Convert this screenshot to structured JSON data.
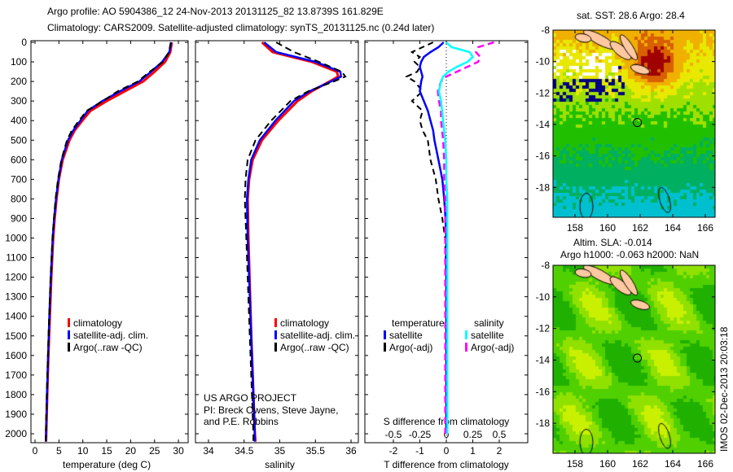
{
  "title": {
    "line1": "Argo profile: AO 5904386_12 24-Nov-2013 20131125_82 13.8739S 161.829E",
    "line2": "Climatology: CARS2009. Satellite-adjusted climatology: synTS_20131125.nc (0.24d later)"
  },
  "credits": {
    "line1": "US ARGO PROJECT",
    "line2": "PI: Breck Owens, Steve Jayne, and P.E. Robbins"
  },
  "timestamp": "IMOS 02-Dec-2013 20:03:18",
  "colors": {
    "climatology": "#ff0000",
    "satellite": "#0000ff",
    "argo": "#000000",
    "sal_satellite": "#00ffff",
    "sal_argo": "#ff00ff",
    "land": "#ffc8a0"
  },
  "chart_data": [
    {
      "type": "line",
      "name": "temperature-profile",
      "xlabel": "temperature (deg C)",
      "ylabel": "depth",
      "xlim": [
        -0.9,
        32
      ],
      "ylim": [
        2050,
        0
      ],
      "xticks": [
        "0",
        "5",
        "10",
        "15",
        "20",
        "25",
        "30"
      ],
      "yticks": [
        "0",
        "100",
        "200",
        "300",
        "400",
        "500",
        "600",
        "700",
        "800",
        "900",
        "1000",
        "1100",
        "1200",
        "1300",
        "1400",
        "1500",
        "1600",
        "1700",
        "1800",
        "1900",
        "2000"
      ],
      "legend": [
        "climatology",
        "satellite-adj. clim.",
        "Argo(..raw -QC)"
      ],
      "depth": [
        0,
        50,
        100,
        150,
        200,
        250,
        300,
        350,
        400,
        450,
        500,
        600,
        700,
        800,
        900,
        1000,
        1200,
        1400,
        1600,
        1800,
        2000,
        2040
      ],
      "series": [
        {
          "name": "climatology",
          "values": [
            28.6,
            28.3,
            27.2,
            25.0,
            22.6,
            18.8,
            15.0,
            11.6,
            9.9,
            8.3,
            7.2,
            5.8,
            5.0,
            4.5,
            4.1,
            3.8,
            3.4,
            3.1,
            2.8,
            2.55,
            2.35,
            2.3
          ]
        },
        {
          "name": "satellite-adj. clim.",
          "values": [
            28.5,
            28.1,
            26.6,
            24.3,
            21.8,
            17.8,
            14.1,
            11.0,
            9.5,
            8.0,
            6.9,
            5.6,
            4.9,
            4.4,
            4.0,
            3.7,
            3.3,
            3.0,
            2.75,
            2.5,
            2.3,
            2.3
          ]
        },
        {
          "name": "Argo(..raw -QC)",
          "values": [
            28.4,
            28.0,
            26.8,
            24.0,
            21.5,
            17.3,
            14.2,
            10.8,
            9.2,
            7.7,
            6.7,
            5.5,
            4.8,
            4.3,
            3.95,
            3.65,
            3.25,
            2.95,
            2.7,
            2.45,
            2.25,
            2.25
          ]
        }
      ]
    },
    {
      "type": "line",
      "name": "salinity-profile",
      "xlabel": "salinity",
      "xlim": [
        33.8,
        36.1
      ],
      "ylim": [
        2050,
        0
      ],
      "xticks": [
        "34",
        "34.5",
        "35",
        "35.5",
        "36"
      ],
      "legend": [
        "climatology",
        "satellite-adj. clim.",
        "Argo(..raw -QC)"
      ],
      "depth": [
        0,
        50,
        100,
        150,
        175,
        200,
        250,
        300,
        400,
        500,
        600,
        700,
        800,
        1000,
        1500,
        2000,
        2040
      ],
      "series": [
        {
          "name": "climatology",
          "values": [
            34.75,
            34.9,
            35.45,
            35.8,
            35.82,
            35.7,
            35.45,
            35.25,
            34.98,
            34.75,
            34.62,
            34.57,
            34.55,
            34.56,
            34.6,
            34.65,
            34.66
          ]
        },
        {
          "name": "satellite-adj. clim.",
          "values": [
            34.78,
            34.95,
            35.5,
            35.85,
            35.86,
            35.72,
            35.42,
            35.2,
            34.94,
            34.72,
            34.6,
            34.56,
            34.54,
            34.55,
            34.6,
            34.65,
            34.65
          ]
        },
        {
          "name": "Argo(..raw -QC)",
          "values": [
            34.95,
            35.2,
            35.55,
            35.87,
            35.92,
            35.76,
            35.4,
            35.15,
            34.88,
            34.66,
            34.55,
            34.52,
            34.51,
            34.53,
            34.58,
            34.63,
            34.63
          ]
        }
      ]
    },
    {
      "type": "line",
      "name": "difference-profile",
      "xlabel": "T difference from climatology",
      "xlabel2": "S difference from climatology",
      "xlim": [
        -3.1,
        3.1
      ],
      "xlim2": [
        -0.775,
        0.775
      ],
      "ylim": [
        2050,
        0
      ],
      "xticks": [
        "-2",
        "-1",
        "0",
        "1",
        "2"
      ],
      "xticks2": [
        "-0.5",
        "-0.25",
        "0",
        "0.25",
        "0.5"
      ],
      "legend_titles": [
        "temperature",
        "salinity"
      ],
      "legend_t": [
        "satellite",
        "Argo(-adj)"
      ],
      "legend_s": [
        "satellite",
        "Argo(-adj)"
      ],
      "depth": [
        0,
        25,
        50,
        75,
        100,
        125,
        150,
        175,
        200,
        250,
        300,
        350,
        400,
        450,
        500,
        600,
        700,
        800,
        900,
        1000,
        1200,
        1500,
        2000
      ],
      "series": [
        {
          "name": "T satellite",
          "values": [
            -0.1,
            -0.3,
            -0.6,
            -0.85,
            -0.95,
            -1.0,
            -0.95,
            -0.9,
            -0.95,
            -1.0,
            -0.85,
            -0.7,
            -0.6,
            -0.5,
            -0.45,
            -0.3,
            -0.15,
            -0.08,
            -0.03,
            0.0,
            0.0,
            0.0,
            0.0
          ]
        },
        {
          "name": "T Argo(-adj)",
          "values": [
            -0.5,
            -0.9,
            -1.3,
            -1.0,
            -1.2,
            -1.0,
            -1.1,
            -1.5,
            -1.2,
            -0.9,
            -1.3,
            -0.9,
            -1.0,
            -0.9,
            -0.7,
            -0.6,
            -0.4,
            -0.3,
            -0.15,
            -0.05,
            0.0,
            0.0,
            0.0
          ]
        },
        {
          "name": "S satellite",
          "values": [
            0.0,
            0.05,
            0.22,
            0.25,
            0.2,
            0.1,
            0.02,
            -0.03,
            -0.05,
            -0.07,
            -0.05,
            -0.04,
            -0.03,
            -0.02,
            -0.01,
            0.0,
            0.0,
            0.01,
            0.01,
            0.01,
            0.01,
            0.01,
            0.01
          ]
        },
        {
          "name": "S Argo(-adj)",
          "values": [
            0.45,
            0.3,
            0.28,
            0.32,
            0.3,
            0.2,
            0.1,
            0.0,
            -0.05,
            -0.08,
            -0.07,
            -0.05,
            -0.05,
            -0.04,
            -0.03,
            -0.02,
            -0.02,
            -0.01,
            -0.01,
            -0.01,
            -0.01,
            -0.01,
            -0.01
          ]
        }
      ]
    },
    {
      "type": "heatmap",
      "name": "sst-map",
      "title": "sat. SST: 28.6 Argo: 28.4",
      "xticks": [
        "158",
        "160",
        "162",
        "164",
        "166"
      ],
      "yticks": [
        "-8",
        "-10",
        "-12",
        "-14",
        "-16",
        "-18"
      ],
      "profile_location": {
        "lon": 161.829,
        "lat": -13.8739
      }
    },
    {
      "type": "heatmap",
      "name": "sla-map",
      "title": "Altim. SLA: -0.014",
      "subtitle": "Argo h1000: -0.063 h2000: NaN",
      "xticks": [
        "158",
        "160",
        "162",
        "164",
        "166"
      ],
      "yticks": [
        "-8",
        "-10",
        "-12",
        "-14",
        "-16",
        "-18"
      ],
      "profile_location": {
        "lon": 161.829,
        "lat": -13.8739
      }
    }
  ]
}
